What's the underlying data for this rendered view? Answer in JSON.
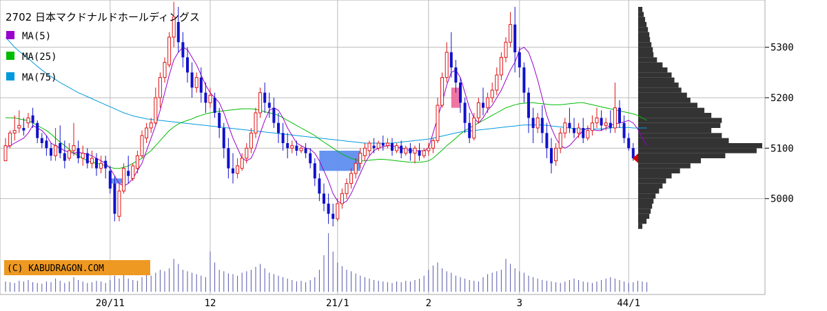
{
  "chart_data": {
    "type": "candlestick",
    "title": "2702 日本マクドナルドホールディングス",
    "legend": [
      {
        "name": "MA(5)",
        "color": "#9900cc"
      },
      {
        "name": "MA(25)",
        "color": "#00bb00"
      },
      {
        "name": "MA(75)",
        "color": "#0099dd"
      }
    ],
    "credit": "(C) KABUDRAGON.COM",
    "ylim": [
      4930,
      5380
    ],
    "y_ticks": [
      5000,
      5100,
      5200,
      5300
    ],
    "x_ticks": [
      {
        "label": "20/11",
        "index": 23
      },
      {
        "label": "12",
        "index": 45
      },
      {
        "label": "21/1",
        "index": 73
      },
      {
        "label": "2",
        "index": 93
      },
      {
        "label": "3",
        "index": 113
      },
      {
        "label": "44/1",
        "index": 137
      }
    ],
    "colors": {
      "up": "#dd1111",
      "down": "#1111cc",
      "volume": "#5555aa",
      "profile": "#333333",
      "current": "#dd0000",
      "gap_down": "#5588ee",
      "gap_up": "#ee6699"
    },
    "candles": [
      [
        5075,
        5120,
        5105,
        5075
      ],
      [
        5105,
        5135,
        5130,
        5100
      ],
      [
        5130,
        5165,
        5135,
        5115
      ],
      [
        5140,
        5175,
        5145,
        5130
      ],
      [
        5140,
        5160,
        5135,
        5125
      ],
      [
        5150,
        5170,
        5160,
        5140
      ],
      [
        5165,
        5180,
        5150,
        5140
      ],
      [
        5150,
        5155,
        5120,
        5110
      ],
      [
        5120,
        5130,
        5110,
        5100
      ],
      [
        5115,
        5125,
        5100,
        5085
      ],
      [
        5100,
        5110,
        5085,
        5075
      ],
      [
        5085,
        5140,
        5105,
        5075
      ],
      [
        5110,
        5145,
        5090,
        5080
      ],
      [
        5090,
        5115,
        5075,
        5060
      ],
      [
        5080,
        5110,
        5095,
        5075
      ],
      [
        5095,
        5150,
        5105,
        5085
      ],
      [
        5100,
        5115,
        5080,
        5070
      ],
      [
        5080,
        5105,
        5090,
        5065
      ],
      [
        5090,
        5100,
        5070,
        5060
      ],
      [
        5070,
        5095,
        5080,
        5060
      ],
      [
        5080,
        5090,
        5060,
        5045
      ],
      [
        5060,
        5085,
        5070,
        5050
      ],
      [
        5075,
        5085,
        5060,
        5040
      ],
      [
        5055,
        5065,
        5020,
        5010
      ],
      [
        5030,
        5045,
        4970,
        4955
      ],
      [
        4965,
        5030,
        5015,
        4955
      ],
      [
        5015,
        5070,
        5060,
        5010
      ],
      [
        5055,
        5085,
        5045,
        5030
      ],
      [
        5040,
        5070,
        5065,
        5035
      ],
      [
        5060,
        5095,
        5085,
        5050
      ],
      [
        5085,
        5135,
        5125,
        5080
      ],
      [
        5120,
        5150,
        5140,
        5110
      ],
      [
        5140,
        5160,
        5150,
        5130
      ],
      [
        5150,
        5220,
        5200,
        5145
      ],
      [
        5200,
        5250,
        5240,
        5180
      ],
      [
        5240,
        5280,
        5270,
        5230
      ],
      [
        5265,
        5330,
        5320,
        5260
      ],
      [
        5320,
        5390,
        5360,
        5300
      ],
      [
        5350,
        5380,
        5310,
        5290
      ],
      [
        5310,
        5330,
        5280,
        5260
      ],
      [
        5280,
        5300,
        5250,
        5230
      ],
      [
        5250,
        5270,
        5220,
        5200
      ],
      [
        5220,
        5250,
        5240,
        5210
      ],
      [
        5240,
        5260,
        5210,
        5190
      ],
      [
        5210,
        5230,
        5190,
        5170
      ],
      [
        5190,
        5220,
        5205,
        5180
      ],
      [
        5200,
        5210,
        5170,
        5160
      ],
      [
        5170,
        5180,
        5140,
        5120
      ],
      [
        5140,
        5150,
        5100,
        5080
      ],
      [
        5100,
        5120,
        5060,
        5040
      ],
      [
        5060,
        5090,
        5050,
        5030
      ],
      [
        5050,
        5080,
        5065,
        5040
      ],
      [
        5060,
        5090,
        5080,
        5055
      ],
      [
        5080,
        5110,
        5100,
        5070
      ],
      [
        5100,
        5140,
        5130,
        5090
      ],
      [
        5130,
        5180,
        5170,
        5120
      ],
      [
        5170,
        5220,
        5210,
        5160
      ],
      [
        5210,
        5230,
        5190,
        5170
      ],
      [
        5190,
        5210,
        5180,
        5160
      ],
      [
        5180,
        5200,
        5150,
        5140
      ],
      [
        5150,
        5170,
        5130,
        5110
      ],
      [
        5130,
        5150,
        5110,
        5095
      ],
      [
        5110,
        5130,
        5100,
        5080
      ],
      [
        5100,
        5115,
        5105,
        5090
      ],
      [
        5105,
        5115,
        5095,
        5085
      ],
      [
        5095,
        5105,
        5100,
        5090
      ],
      [
        5100,
        5110,
        5090,
        5080
      ],
      [
        5090,
        5100,
        5070,
        5060
      ],
      [
        5070,
        5080,
        5040,
        5025
      ],
      [
        5040,
        5050,
        5010,
        4995
      ],
      [
        5010,
        5030,
        4990,
        4975
      ],
      [
        4990,
        5010,
        4970,
        4950
      ],
      [
        4970,
        4990,
        4960,
        4945
      ],
      [
        4960,
        5000,
        4990,
        4955
      ],
      [
        4990,
        5020,
        5010,
        4980
      ],
      [
        5010,
        5040,
        5030,
        5000
      ],
      [
        5030,
        5060,
        5050,
        5020
      ],
      [
        5050,
        5080,
        5070,
        5040
      ],
      [
        5070,
        5100,
        5090,
        5060
      ],
      [
        5085,
        5110,
        5100,
        5075
      ],
      [
        5095,
        5115,
        5110,
        5085
      ],
      [
        5105,
        5120,
        5100,
        5090
      ],
      [
        5100,
        5115,
        5110,
        5095
      ],
      [
        5110,
        5125,
        5105,
        5095
      ],
      [
        5105,
        5120,
        5110,
        5100
      ],
      [
        5110,
        5120,
        5095,
        5085
      ],
      [
        5095,
        5110,
        5105,
        5090
      ],
      [
        5105,
        5115,
        5090,
        5080
      ],
      [
        5090,
        5105,
        5100,
        5085
      ],
      [
        5100,
        5110,
        5090,
        5075
      ],
      [
        5090,
        5105,
        5100,
        5070
      ],
      [
        5095,
        5110,
        5085,
        5075
      ],
      [
        5085,
        5100,
        5095,
        5080
      ],
      [
        5095,
        5110,
        5100,
        5085
      ],
      [
        5100,
        5120,
        5115,
        5090
      ],
      [
        5115,
        5200,
        5185,
        5110
      ],
      [
        5185,
        5250,
        5240,
        5180
      ],
      [
        5240,
        5310,
        5290,
        5230
      ],
      [
        5290,
        5330,
        5260,
        5240
      ],
      [
        5260,
        5275,
        5230,
        5210
      ],
      [
        5230,
        5240,
        5190,
        5170
      ],
      [
        5190,
        5200,
        5150,
        5130
      ],
      [
        5150,
        5170,
        5120,
        5110
      ],
      [
        5120,
        5170,
        5160,
        5115
      ],
      [
        5160,
        5200,
        5190,
        5150
      ],
      [
        5190,
        5220,
        5180,
        5165
      ],
      [
        5180,
        5210,
        5200,
        5170
      ],
      [
        5200,
        5230,
        5215,
        5190
      ],
      [
        5215,
        5260,
        5245,
        5205
      ],
      [
        5245,
        5290,
        5280,
        5235
      ],
      [
        5280,
        5320,
        5310,
        5270
      ],
      [
        5310,
        5370,
        5345,
        5300
      ],
      [
        5345,
        5380,
        5290,
        5250
      ],
      [
        5290,
        5300,
        5260,
        5240
      ],
      [
        5260,
        5270,
        5210,
        5190
      ],
      [
        5210,
        5220,
        5160,
        5130
      ],
      [
        5160,
        5180,
        5140,
        5110
      ],
      [
        5140,
        5170,
        5160,
        5130
      ],
      [
        5160,
        5185,
        5130,
        5110
      ],
      [
        5130,
        5150,
        5100,
        5080
      ],
      [
        5100,
        5120,
        5070,
        5050
      ],
      [
        5075,
        5110,
        5100,
        5065
      ],
      [
        5100,
        5140,
        5130,
        5090
      ],
      [
        5130,
        5160,
        5150,
        5120
      ],
      [
        5150,
        5180,
        5140,
        5130
      ],
      [
        5140,
        5160,
        5130,
        5120
      ],
      [
        5130,
        5150,
        5140,
        5120
      ],
      [
        5140,
        5160,
        5120,
        5110
      ],
      [
        5120,
        5145,
        5135,
        5115
      ],
      [
        5135,
        5165,
        5150,
        5125
      ],
      [
        5150,
        5180,
        5160,
        5140
      ],
      [
        5160,
        5175,
        5145,
        5135
      ],
      [
        5145,
        5160,
        5150,
        5135
      ],
      [
        5150,
        5175,
        5140,
        5130
      ],
      [
        5140,
        5230,
        5180,
        5130
      ],
      [
        5180,
        5195,
        5150,
        5140
      ],
      [
        5150,
        5165,
        5120,
        5110
      ],
      [
        5120,
        5130,
        5100,
        5095
      ],
      [
        5100,
        5110,
        5080,
        5075
      ]
    ],
    "ma5": [
      5100,
      5105,
      5110,
      5115,
      5120,
      5130,
      5145,
      5140,
      5135,
      5125,
      5110,
      5105,
      5100,
      5095,
      5092,
      5090,
      5092,
      5090,
      5088,
      5085,
      5080,
      5075,
      5070,
      5060,
      5045,
      5030,
      5025,
      5030,
      5040,
      5055,
      5070,
      5095,
      5120,
      5145,
      5175,
      5210,
      5245,
      5275,
      5290,
      5300,
      5295,
      5280,
      5265,
      5245,
      5225,
      5210,
      5200,
      5190,
      5170,
      5145,
      5120,
      5100,
      5080,
      5075,
      5080,
      5100,
      5130,
      5155,
      5175,
      5180,
      5175,
      5160,
      5140,
      5125,
      5110,
      5105,
      5100,
      5098,
      5090,
      5075,
      5055,
      5035,
      5010,
      4995,
      4990,
      4995,
      5010,
      5030,
      5050,
      5070,
      5085,
      5095,
      5100,
      5103,
      5105,
      5105,
      5102,
      5100,
      5098,
      5095,
      5095,
      5095,
      5095,
      5100,
      5130,
      5160,
      5190,
      5225,
      5250,
      5255,
      5240,
      5210,
      5180,
      5160,
      5150,
      5160,
      5175,
      5185,
      5200,
      5215,
      5235,
      5255,
      5270,
      5295,
      5300,
      5290,
      5265,
      5235,
      5200,
      5165,
      5140,
      5120,
      5105,
      5100,
      5105,
      5115,
      5125,
      5135,
      5140,
      5137,
      5135,
      5135,
      5140,
      5145,
      5148,
      5150,
      5152,
      5155,
      5150,
      5138,
      5120,
      5105
    ],
    "ma25": [
      5160,
      5160,
      5160,
      5158,
      5156,
      5155,
      5150,
      5145,
      5140,
      5135,
      5128,
      5120,
      5112,
      5105,
      5098,
      5090,
      5085,
      5080,
      5075,
      5072,
      5070,
      5068,
      5065,
      5062,
      5060,
      5060,
      5062,
      5065,
      5070,
      5075,
      5080,
      5088,
      5095,
      5105,
      5115,
      5125,
      5135,
      5142,
      5148,
      5152,
      5155,
      5158,
      5162,
      5165,
      5168,
      5170,
      5172,
      5173,
      5174,
      5175,
      5176,
      5177,
      5178,
      5178,
      5178,
      5177,
      5175,
      5172,
      5170,
      5168,
      5165,
      5160,
      5155,
      5150,
      5145,
      5140,
      5135,
      5130,
      5125,
      5118,
      5112,
      5106,
      5100,
      5094,
      5088,
      5084,
      5080,
      5077,
      5075,
      5075,
      5076,
      5077,
      5078,
      5078,
      5077,
      5076,
      5075,
      5074,
      5073,
      5072,
      5072,
      5072,
      5073,
      5075,
      5080,
      5088,
      5096,
      5105,
      5112,
      5120,
      5128,
      5135,
      5140,
      5145,
      5150,
      5155,
      5160,
      5165,
      5170,
      5175,
      5180,
      5183,
      5186,
      5188,
      5189,
      5190,
      5190,
      5189,
      5188,
      5187,
      5186,
      5186,
      5186,
      5187,
      5188,
      5189,
      5190,
      5190,
      5188,
      5186,
      5184,
      5182,
      5180,
      5178,
      5176,
      5174,
      5172,
      5170,
      5168,
      5165,
      5160,
      5155
    ],
    "ma75": [
      5320,
      5310,
      5300,
      5292,
      5285,
      5278,
      5270,
      5262,
      5255,
      5248,
      5242,
      5236,
      5230,
      5225,
      5220,
      5215,
      5210,
      5206,
      5202,
      5198,
      5194,
      5190,
      5186,
      5182,
      5178,
      5174,
      5170,
      5167,
      5164,
      5162,
      5160,
      5158,
      5157,
      5156,
      5155,
      5154,
      5153,
      5152,
      5151,
      5150,
      5149,
      5148,
      5147,
      5146,
      5145,
      5144,
      5143,
      5142,
      5141,
      5140,
      5139,
      5138,
      5137,
      5136,
      5135,
      5134,
      5133,
      5132,
      5131,
      5130,
      5129,
      5128,
      5127,
      5126,
      5125,
      5124,
      5123,
      5122,
      5121,
      5120,
      5119,
      5118,
      5117,
      5116,
      5115,
      5114,
      5113,
      5112,
      5111,
      5110,
      5110,
      5110,
      5110,
      5110,
      5110,
      5110,
      5111,
      5112,
      5113,
      5114,
      5115,
      5116,
      5117,
      5118,
      5120,
      5122,
      5124,
      5126,
      5128,
      5130,
      5132,
      5133,
      5134,
      5135,
      5136,
      5137,
      5138,
      5139,
      5140,
      5141,
      5142,
      5143,
      5144,
      5145,
      5146,
      5146,
      5146,
      5146,
      5146,
      5145,
      5144,
      5143,
      5142,
      5141,
      5140,
      5139,
      5138,
      5138,
      5138,
      5138,
      5138,
      5138,
      5139,
      5140,
      5141,
      5141,
      5141,
      5141,
      5140,
      5140,
      5140,
      5140
    ],
    "volume": [
      14,
      13,
      12,
      15,
      14,
      16,
      13,
      12,
      11,
      14,
      13,
      18,
      15,
      12,
      14,
      20,
      16,
      14,
      12,
      13,
      15,
      14,
      12,
      16,
      22,
      18,
      24,
      18,
      16,
      15,
      20,
      24,
      22,
      26,
      30,
      28,
      32,
      45,
      38,
      30,
      28,
      26,
      24,
      22,
      20,
      55,
      40,
      30,
      28,
      25,
      24,
      22,
      26,
      28,
      30,
      34,
      38,
      32,
      26,
      24,
      22,
      20,
      18,
      16,
      14,
      15,
      13,
      16,
      20,
      30,
      50,
      80,
      55,
      40,
      35,
      30,
      28,
      25,
      22,
      20,
      18,
      16,
      15,
      14,
      13,
      12,
      14,
      13,
      15,
      14,
      16,
      18,
      22,
      30,
      36,
      40,
      32,
      28,
      26,
      22,
      20,
      18,
      16,
      15,
      14,
      20,
      24,
      26,
      28,
      30,
      45,
      38,
      32,
      28,
      26,
      22,
      20,
      18,
      16,
      15,
      14,
      13,
      12,
      14,
      16,
      18,
      16,
      14,
      13,
      12,
      14,
      16,
      18,
      20,
      18,
      16,
      14,
      12,
      13,
      15,
      14,
      13
    ],
    "profile": [
      [
        5375,
        6
      ],
      [
        5365,
        8
      ],
      [
        5355,
        10
      ],
      [
        5345,
        12
      ],
      [
        5335,
        14
      ],
      [
        5325,
        16
      ],
      [
        5315,
        17
      ],
      [
        5305,
        19
      ],
      [
        5295,
        21
      ],
      [
        5285,
        22
      ],
      [
        5275,
        27
      ],
      [
        5265,
        35
      ],
      [
        5255,
        42
      ],
      [
        5245,
        48
      ],
      [
        5235,
        52
      ],
      [
        5225,
        58
      ],
      [
        5215,
        62
      ],
      [
        5205,
        70
      ],
      [
        5195,
        75
      ],
      [
        5185,
        85
      ],
      [
        5175,
        95
      ],
      [
        5165,
        105
      ],
      [
        5155,
        120
      ],
      [
        5145,
        118
      ],
      [
        5135,
        105
      ],
      [
        5125,
        120
      ],
      [
        5115,
        130
      ],
      [
        5105,
        178
      ],
      [
        5095,
        170
      ],
      [
        5085,
        125
      ],
      [
        5075,
        90
      ],
      [
        5065,
        75
      ],
      [
        5055,
        60
      ],
      [
        5045,
        48
      ],
      [
        5035,
        40
      ],
      [
        5025,
        35
      ],
      [
        5015,
        30
      ],
      [
        5005,
        25
      ],
      [
        4995,
        22
      ],
      [
        4985,
        20
      ],
      [
        4975,
        18
      ],
      [
        4965,
        16
      ],
      [
        4955,
        12
      ],
      [
        4945,
        6
      ]
    ],
    "gaps": [
      {
        "start": 23,
        "end": 26,
        "low": 5030,
        "high": 5040,
        "kind": "down"
      },
      {
        "start": 69,
        "end": 78,
        "low": 5055,
        "high": 5095,
        "kind": "down"
      },
      {
        "start": 98,
        "end": 100,
        "low": 5180,
        "high": 5220,
        "kind": "up"
      }
    ]
  }
}
